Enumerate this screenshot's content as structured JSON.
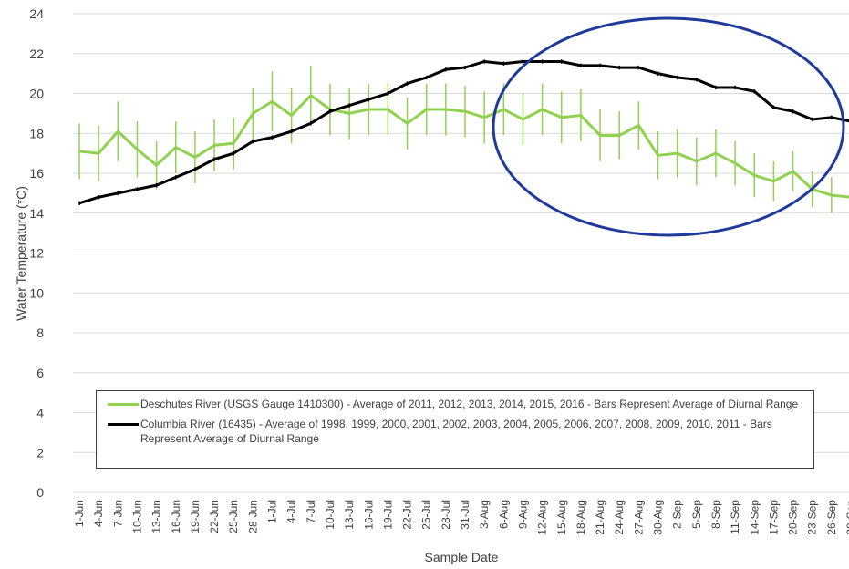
{
  "chart_data": {
    "type": "line",
    "y_label": "Water Temperature (*C)",
    "x_label": "Sample Date",
    "categories": [
      "1-Jun",
      "4-Jun",
      "7-Jun",
      "10-Jun",
      "13-Jun",
      "16-Jun",
      "19-Jun",
      "22-Jun",
      "25-Jun",
      "28-Jun",
      "1-Jul",
      "4-Jul",
      "7-Jul",
      "10-Jul",
      "13-Jul",
      "16-Jul",
      "19-Jul",
      "22-Jul",
      "25-Jul",
      "28-Jul",
      "31-Jul",
      "3-Aug",
      "6-Aug",
      "9-Aug",
      "12-Aug",
      "15-Aug",
      "18-Aug",
      "21-Aug",
      "24-Aug",
      "27-Aug",
      "30-Aug",
      "2-Sep",
      "5-Sep",
      "8-Sep",
      "11-Sep",
      "14-Sep",
      "17-Sep",
      "20-Sep",
      "23-Sep",
      "26-Sep",
      "29-Sep"
    ],
    "series": [
      {
        "name": "Deschutes River (USGS Gauge 1410300) - Average of 2011, 2012, 2013, 2014, 2015, 2016 - Bars Represent Average of Diurnal Range",
        "color": "#92d050",
        "values": [
          17.1,
          17.0,
          18.1,
          17.2,
          16.4,
          17.3,
          16.8,
          17.4,
          17.5,
          19.0,
          19.6,
          18.9,
          19.9,
          19.2,
          19.0,
          19.2,
          19.2,
          18.5,
          19.2,
          19.2,
          19.1,
          18.8,
          19.2,
          18.7,
          19.2,
          18.8,
          18.9,
          17.9,
          17.9,
          18.4,
          16.9,
          17.0,
          16.6,
          17.0,
          16.5,
          15.9,
          15.6,
          16.1,
          15.2,
          14.9,
          14.8
        ],
        "error": [
          1.4,
          1.4,
          1.5,
          1.4,
          1.2,
          1.3,
          1.3,
          1.3,
          1.3,
          1.3,
          1.5,
          1.4,
          1.5,
          1.3,
          1.3,
          1.3,
          1.3,
          1.3,
          1.3,
          1.3,
          1.3,
          1.3,
          1.3,
          1.3,
          1.3,
          1.3,
          1.3,
          1.3,
          1.2,
          1.2,
          1.2,
          1.2,
          1.2,
          1.2,
          1.1,
          1.1,
          1.0,
          1.0,
          0.9,
          0.9,
          0.9
        ]
      },
      {
        "name": "Columbia River (16435) - Average of 1998, 1999, 2000, 2001, 2002, 2003, 2004, 2005, 2006, 2007, 2008, 2009, 2010, 2011 - Bars Represent Average of Diurnal Range",
        "color": "#000000",
        "values": [
          14.5,
          14.8,
          15.0,
          15.2,
          15.4,
          15.8,
          16.2,
          16.7,
          17.0,
          17.6,
          17.8,
          18.1,
          18.5,
          19.1,
          19.4,
          19.7,
          20.0,
          20.5,
          20.8,
          21.2,
          21.3,
          21.6,
          21.5,
          21.6,
          21.6,
          21.6,
          21.4,
          21.4,
          21.3,
          21.3,
          21.0,
          20.8,
          20.7,
          20.3,
          20.3,
          20.1,
          19.3,
          19.1,
          18.7,
          18.8,
          18.6
        ],
        "error": [
          0.1,
          0.1,
          0.1,
          0.1,
          0.1,
          0.1,
          0.1,
          0.1,
          0.1,
          0.1,
          0.1,
          0.1,
          0.1,
          0.1,
          0.1,
          0.1,
          0.1,
          0.1,
          0.1,
          0.1,
          0.1,
          0.1,
          0.1,
          0.1,
          0.1,
          0.1,
          0.1,
          0.1,
          0.1,
          0.1,
          0.1,
          0.1,
          0.1,
          0.1,
          0.1,
          0.1,
          0.1,
          0.1,
          0.1,
          0.1,
          0.1
        ]
      }
    ],
    "ylim": [
      0,
      24
    ],
    "yticks": [
      0,
      2,
      4,
      6,
      8,
      10,
      12,
      14,
      16,
      18,
      20,
      22,
      24
    ],
    "grid": true
  }
}
